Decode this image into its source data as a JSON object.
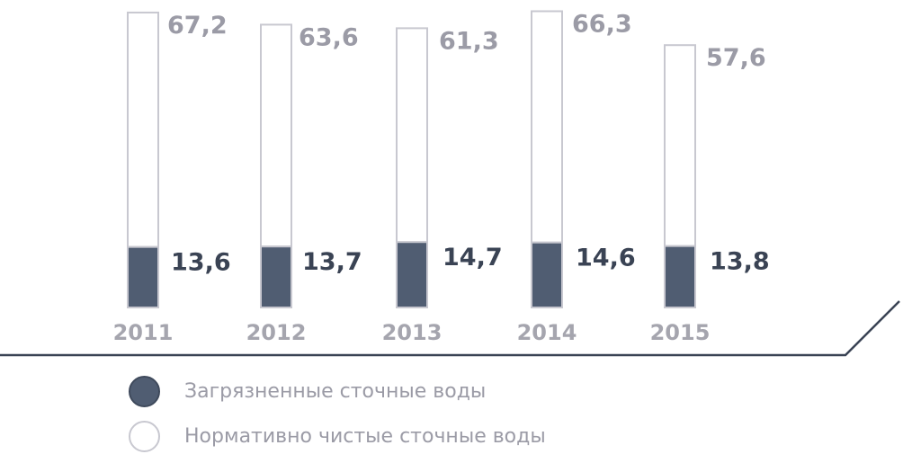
{
  "chart_data": {
    "type": "bar",
    "categories": [
      "2011",
      "2012",
      "2013",
      "2014",
      "2015"
    ],
    "series": [
      {
        "name": "Загрязненные сточные воды",
        "values": [
          13.6,
          13.7,
          14.7,
          14.6,
          13.8
        ],
        "labels": [
          "13,6",
          "13,7",
          "14,7",
          "14,6",
          "13,8"
        ],
        "color": "#505d72"
      },
      {
        "name": "Нормативно чистые сточные воды",
        "values": [
          67.2,
          63.6,
          61.3,
          66.3,
          57.6
        ],
        "labels": [
          "67,2",
          "63,6",
          "61,3",
          "66,3",
          "57,6"
        ],
        "color": "#ffffff"
      }
    ],
    "stacked": true,
    "grid": false,
    "legend_position": "bottom-left"
  },
  "legend": {
    "items": [
      {
        "label": "Загрязненные сточные воды",
        "style": "filled",
        "color": "#505d72"
      },
      {
        "label": "Нормативно чистые сточные воды",
        "style": "outline",
        "color": "#ffffff"
      }
    ]
  }
}
